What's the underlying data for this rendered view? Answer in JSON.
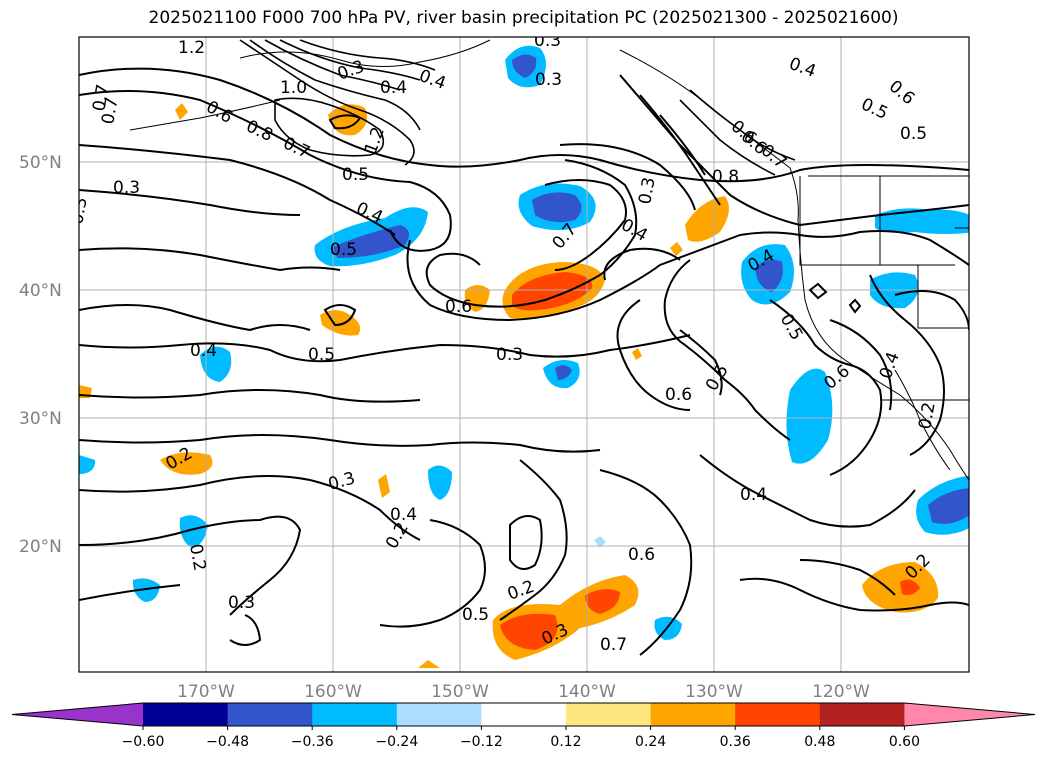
{
  "title": "2025021100 F000 700 hPa PV, river basin precipitation PC (2025021300 - 2025021600)",
  "lat_labels": [
    "50°N",
    "40°N",
    "30°N",
    "20°N"
  ],
  "lon_labels": [
    "170°W",
    "160°W",
    "150°W",
    "140°W",
    "130°W",
    "120°W"
  ],
  "colorbar": {
    "colors": [
      "#9933cc",
      "#000099",
      "#3355cc",
      "#00bbff",
      "#aaddff",
      "#ffffff",
      "#ffe680",
      "#ffa500",
      "#ff4500",
      "#b22222",
      "#ff88aa"
    ],
    "labels": [
      "−0.60",
      "−0.48",
      "−0.36",
      "−0.24",
      "−0.12",
      "0.12",
      "0.24",
      "0.36",
      "0.48",
      "0.60"
    ]
  },
  "contour_labels": [
    "1.2",
    "1.0",
    "0.8",
    "0.7",
    "0.6",
    "0.5",
    "0.4",
    "0.3",
    "0.3",
    "0.4",
    "0.5",
    "0.6",
    "0.7",
    "0.4",
    "0.5",
    "0.4",
    "0.3",
    "0.4",
    "0.5",
    "0.6",
    "0.3",
    "0.4",
    "0.3",
    "0.2",
    "0.3",
    "0.2",
    "0.3",
    "0.2",
    "0.3",
    "0.2",
    "0.7",
    "0.6",
    "0.5",
    "0.4",
    "0.6",
    "0.5",
    "0.8",
    "0.7",
    "0.6",
    "0.3",
    "0.4",
    "0.7",
    "0.5",
    "0.6",
    "0.4",
    "0.2",
    "0.2",
    "0.7",
    "0.6",
    "0.5",
    "0.4",
    "1.2",
    "0.3"
  ]
}
